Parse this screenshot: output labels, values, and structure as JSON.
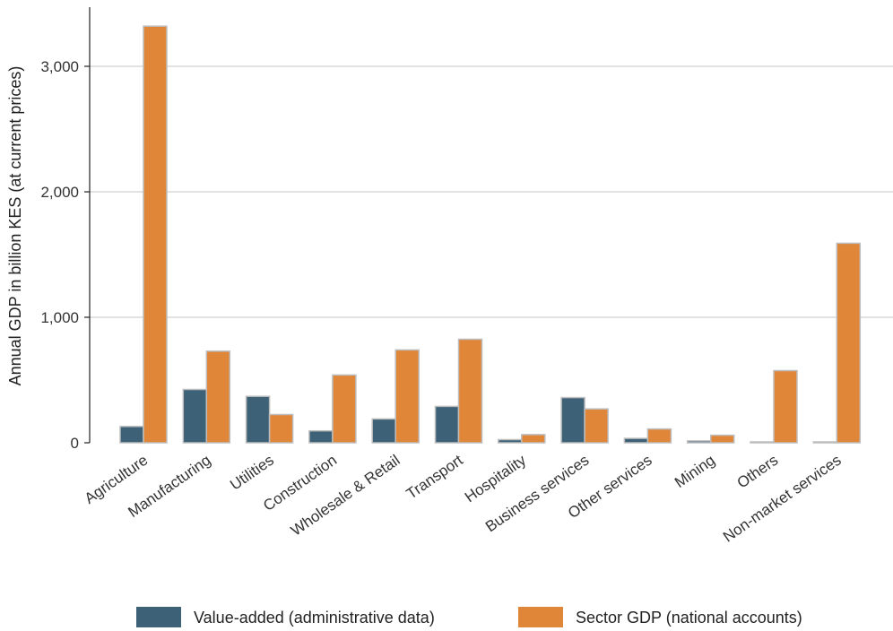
{
  "chart_data": {
    "type": "bar",
    "title": "",
    "xlabel": "",
    "ylabel": "Annual GDP in billion KES (at current prices)",
    "ylim": [
      0,
      3400
    ],
    "yticks": [
      0,
      1000,
      2000,
      3000
    ],
    "ytick_labels": [
      "0",
      "1,000",
      "2,000",
      "3,000"
    ],
    "grid": true,
    "legend_position": "bottom",
    "categories": [
      "Agriculture",
      "Manufacturing",
      "Utilities",
      "Construction",
      "Wholesale & Retail",
      "Transport",
      "Hospitality",
      "Business services",
      "Other services",
      "Mining",
      "Others",
      "Non-market services"
    ],
    "series": [
      {
        "name": "Value-added (administrative data)",
        "color": "#3d6278",
        "values": [
          130,
          425,
          370,
          95,
          190,
          290,
          25,
          360,
          35,
          15,
          5,
          5
        ]
      },
      {
        "name": "Sector GDP (national accounts)",
        "color": "#e08639",
        "values": [
          3320,
          730,
          225,
          540,
          740,
          825,
          65,
          270,
          110,
          60,
          575,
          1590
        ]
      }
    ]
  }
}
